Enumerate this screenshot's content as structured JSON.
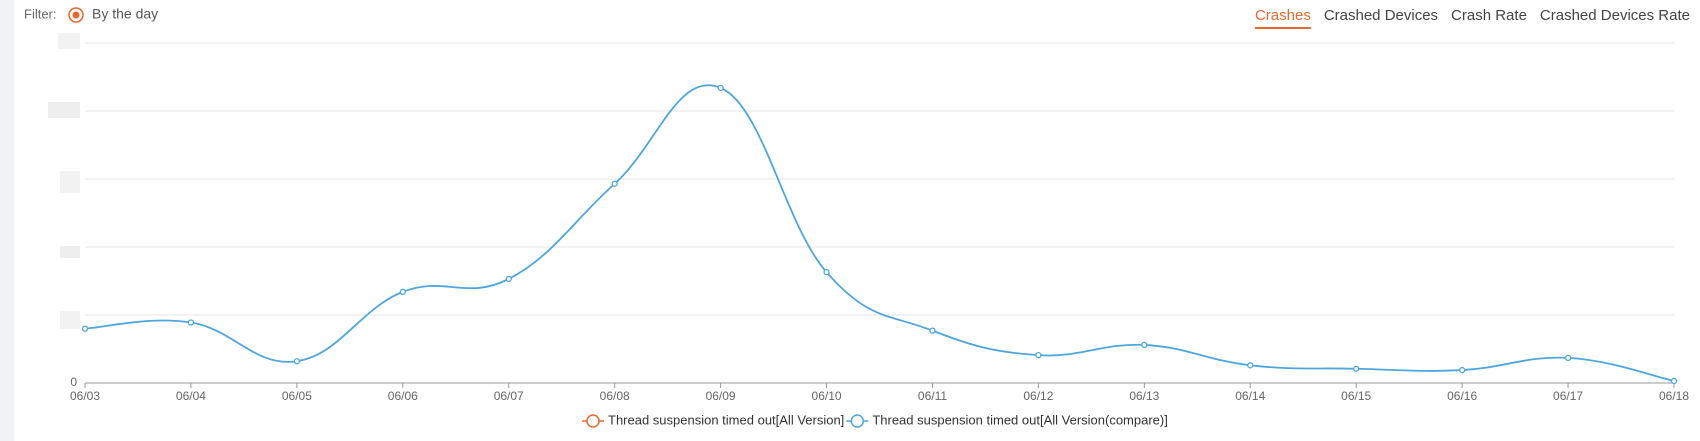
{
  "filter": {
    "label": "Filter:",
    "option": "By the day"
  },
  "tabs": [
    "Crashes",
    "Crashed Devices",
    "Crash Rate",
    "Crashed Devices Rate"
  ],
  "active_tab": 0,
  "chart_data": {
    "type": "line",
    "categories": [
      "06/03",
      "06/04",
      "06/05",
      "06/06",
      "06/07",
      "06/08",
      "06/09",
      "06/10",
      "06/11",
      "06/12",
      "06/13",
      "06/14",
      "06/15",
      "06/16",
      "06/17",
      "06/18"
    ],
    "series": [
      {
        "name": "Thread suspension timed out[All Version]",
        "color": "#e8692d",
        "values": [
          null,
          null,
          null,
          null,
          null,
          null,
          null,
          null,
          null,
          null,
          null,
          null,
          null,
          null,
          null,
          null
        ]
      },
      {
        "name": "Thread suspension timed out[All Version(compare)]",
        "color": "#4ea6dc",
        "values": [
          0.8,
          0.89,
          0.32,
          1.34,
          1.53,
          2.93,
          4.34,
          1.63,
          0.77,
          0.41,
          0.56,
          0.26,
          0.21,
          0.19,
          0.37,
          0.03
        ]
      }
    ],
    "ylim": [
      0,
      5
    ],
    "yticks": [
      0
    ],
    "gridlines": [
      1,
      2,
      3,
      4,
      5
    ],
    "grid": true
  }
}
